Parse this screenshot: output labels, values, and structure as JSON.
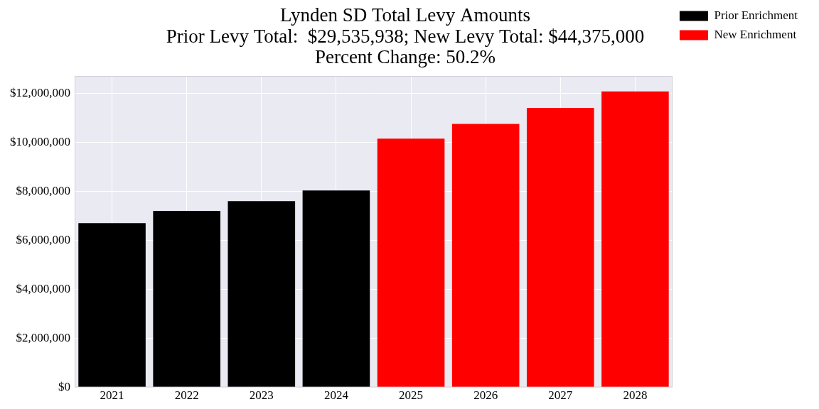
{
  "chart_data": {
    "type": "bar",
    "title": [
      "Lynden SD Total Levy Amounts",
      "Prior Levy Total:  $29,535,938; New Levy Total: $44,375,000",
      "Percent Change: 50.2%"
    ],
    "categories": [
      "2021",
      "2022",
      "2023",
      "2024",
      "2025",
      "2026",
      "2027",
      "2028"
    ],
    "series": [
      {
        "name": "Prior Enrichment",
        "color": "#000000",
        "values": [
          6700000,
          7200000,
          7600000,
          8035938,
          null,
          null,
          null,
          null
        ]
      },
      {
        "name": "New Enrichment",
        "color": "#ff0000",
        "values": [
          null,
          null,
          null,
          null,
          10150000,
          10750000,
          11400000,
          12075000
        ]
      }
    ],
    "ylim": [
      0,
      12700000
    ],
    "yticks": [
      {
        "value": 0,
        "label": "$0"
      },
      {
        "value": 2000000,
        "label": "$2,000,000"
      },
      {
        "value": 4000000,
        "label": "$4,000,000"
      },
      {
        "value": 6000000,
        "label": "$6,000,000"
      },
      {
        "value": 8000000,
        "label": "$8,000,000"
      },
      {
        "value": 10000000,
        "label": "$10,000,000"
      },
      {
        "value": 12000000,
        "label": "$12,000,000"
      }
    ],
    "grid": true,
    "legend": "right"
  }
}
